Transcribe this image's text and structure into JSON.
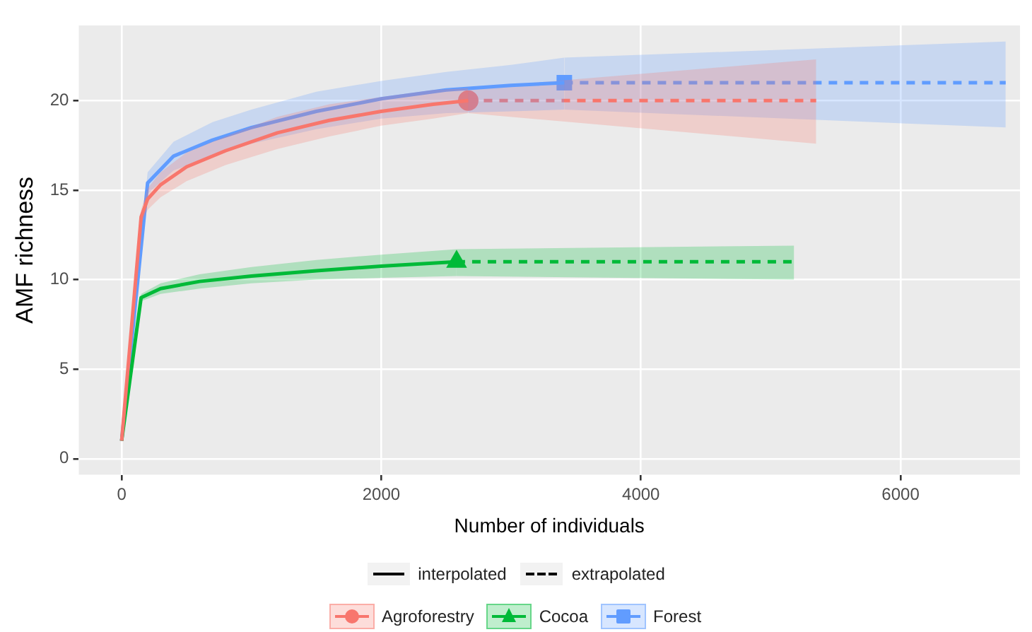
{
  "chart_data": {
    "type": "line",
    "xlabel": "Number of individuals",
    "ylabel": "AMF richness",
    "xlim": [
      -330,
      6920
    ],
    "ylim": [
      -0.9,
      24.2
    ],
    "xticks": [
      0,
      2000,
      4000,
      6000
    ],
    "yticks": [
      0,
      5,
      10,
      15,
      20
    ],
    "grid": true,
    "legend": "bottom",
    "annotations": [
      "interpolated",
      "extrapolated"
    ],
    "series": [
      {
        "name": "Agroforestry",
        "color": "#f8766d",
        "line_style": "solid",
        "x": [
          0,
          150,
          200,
          300,
          500,
          800,
          1200,
          1600,
          2000,
          2400,
          2670
        ],
        "values": [
          1,
          13.5,
          14.5,
          15.3,
          16.3,
          17.2,
          18.2,
          18.9,
          19.4,
          19.8,
          20
        ],
        "lower": [
          1,
          13.1,
          13.9,
          14.6,
          15.5,
          16.4,
          17.3,
          18,
          18.6,
          19,
          19.3
        ],
        "upper": [
          1,
          13.9,
          15.1,
          16,
          17.1,
          18,
          19.1,
          19.8,
          20.2,
          20.6,
          20.7
        ]
      },
      {
        "name": "Cocoa",
        "color": "#00ba38",
        "line_style": "solid",
        "x": [
          0,
          150,
          300,
          600,
          1000,
          1500,
          2000,
          2580
        ],
        "values": [
          1,
          9,
          9.5,
          9.9,
          10.2,
          10.5,
          10.75,
          11
        ],
        "lower": [
          1,
          8.8,
          9.2,
          9.5,
          9.8,
          10,
          10.1,
          10.2
        ],
        "upper": [
          1,
          9.2,
          9.8,
          10.3,
          10.7,
          11.1,
          11.4,
          11.7
        ]
      },
      {
        "name": "Forest",
        "color": "#619cff",
        "line_style": "solid",
        "x": [
          0,
          200,
          400,
          700,
          1000,
          1500,
          2000,
          2500,
          3000,
          3410
        ],
        "values": [
          1,
          15.4,
          16.9,
          17.8,
          18.5,
          19.4,
          20.1,
          20.6,
          20.85,
          21
        ],
        "lower": [
          1,
          14.8,
          16.1,
          16.9,
          17.6,
          18.4,
          19,
          19.3,
          19.4,
          19.5
        ],
        "upper": [
          1,
          16,
          17.7,
          18.8,
          19.5,
          20.5,
          21.1,
          21.6,
          22,
          22.4
        ]
      },
      {
        "color": "#f8766d",
        "marker": "none",
        "line_style": "dashed",
        "x": [
          2670,
          5350
        ],
        "values": [
          20,
          20
        ],
        "lower": [
          19.3,
          17.6
        ],
        "upper": [
          20.7,
          22.3
        ]
      },
      {
        "color": "#00ba38",
        "marker": "none",
        "line_style": "dashed",
        "x": [
          2580,
          5180
        ],
        "values": [
          11,
          11
        ],
        "lower": [
          10.2,
          10
        ],
        "upper": [
          11.7,
          11.9
        ]
      },
      {
        "color": "#619cff",
        "marker": "none",
        "line_style": "dashed",
        "x": [
          3410,
          6810
        ],
        "values": [
          21,
          21
        ],
        "lower": [
          19.5,
          18.5
        ],
        "upper": [
          22.4,
          23.3
        ]
      },
      {
        "type": "scatter",
        "color": "#f8766d",
        "marker": "circle",
        "x": [
          2670
        ],
        "values": [
          20
        ]
      },
      {
        "type": "scatter",
        "color": "#00ba38",
        "marker": "triangle",
        "x": [
          2580
        ],
        "values": [
          11
        ]
      },
      {
        "type": "scatter",
        "color": "#619cff",
        "marker": "square",
        "x": [
          3410
        ],
        "values": [
          21
        ]
      }
    ]
  }
}
